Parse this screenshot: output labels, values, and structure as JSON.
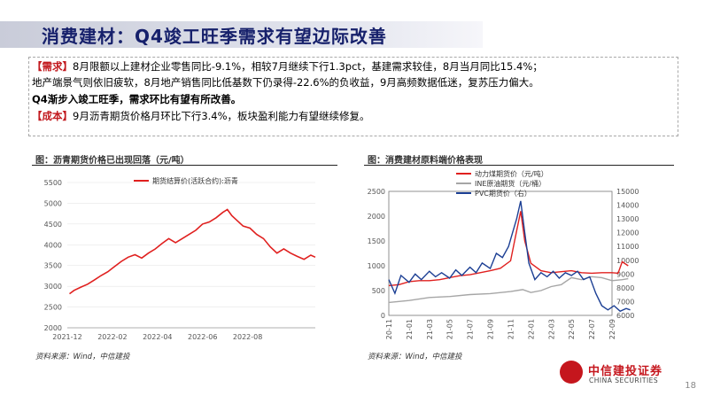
{
  "header": {
    "title": "消费建材：Q4竣工旺季需求有望边际改善"
  },
  "paragraphs": {
    "demand_tag": "【需求】",
    "demand_line1": "8月限额以上建材企业零售同比-9.1%，相较7月继续下行1.3pct，基建需求较佳，8月当月同比15.4%；",
    "demand_line2": "地产端景气则依旧疲软，8月地产销售同比低基数下仍录得-22.6%的负收益，9月高频数据低迷，复苏压力偏大。",
    "demand_line3": "Q4渐步入竣工旺季，需求环比有望有所改善。",
    "cost_tag": "【成本】",
    "cost_line": "9月沥青期货价格月环比下行3.4%，板块盈利能力有望继续修复。"
  },
  "charts": {
    "left_title": "图：沥青期货价格已出现回落（元/吨）",
    "right_title": "图：消费建材原料端价格表现",
    "source": "资料来源：Wind，中信建投",
    "page_number": "18"
  },
  "logo": {
    "cn": "中信建投证券",
    "en": "CHINA SECURITIES"
  },
  "chart_data": [
    {
      "type": "line",
      "title": "图：沥青期货价格已出现回落（元/吨）",
      "ylim": [
        2000,
        5500
      ],
      "yticks": [
        2000,
        2500,
        3000,
        3500,
        4000,
        4500,
        5000,
        5500
      ],
      "xticks": [
        "2021-12",
        "2022-02",
        "2022-04",
        "2022-06",
        "2022-08"
      ],
      "x_range": [
        0,
        11
      ],
      "series": [
        {
          "name": "期货结算价(活跃合约):沥青",
          "color": "#e0201f",
          "points": [
            [
              0.1,
              2820
            ],
            [
              0.3,
              2900
            ],
            [
              0.6,
              2980
            ],
            [
              0.9,
              3050
            ],
            [
              1.2,
              3150
            ],
            [
              1.5,
              3260
            ],
            [
              1.8,
              3350
            ],
            [
              2.1,
              3480
            ],
            [
              2.4,
              3600
            ],
            [
              2.7,
              3700
            ],
            [
              3.0,
              3760
            ],
            [
              3.3,
              3680
            ],
            [
              3.6,
              3800
            ],
            [
              3.9,
              3900
            ],
            [
              4.2,
              4030
            ],
            [
              4.5,
              4150
            ],
            [
              4.8,
              4050
            ],
            [
              5.1,
              4150
            ],
            [
              5.4,
              4250
            ],
            [
              5.7,
              4350
            ],
            [
              6.0,
              4500
            ],
            [
              6.3,
              4550
            ],
            [
              6.6,
              4650
            ],
            [
              6.9,
              4780
            ],
            [
              7.1,
              4850
            ],
            [
              7.3,
              4700
            ],
            [
              7.5,
              4600
            ],
            [
              7.8,
              4450
            ],
            [
              8.1,
              4400
            ],
            [
              8.4,
              4250
            ],
            [
              8.7,
              4150
            ],
            [
              9.0,
              3950
            ],
            [
              9.3,
              3800
            ],
            [
              9.6,
              3900
            ],
            [
              9.9,
              3800
            ],
            [
              10.2,
              3720
            ],
            [
              10.5,
              3650
            ],
            [
              10.8,
              3750
            ],
            [
              11.0,
              3700
            ]
          ]
        }
      ]
    },
    {
      "type": "line",
      "title": "图：消费建材原料端价格表现",
      "ylim_left": [
        0,
        2500
      ],
      "yticks_left": [
        0,
        500,
        1000,
        1500,
        2000,
        2500
      ],
      "ylim_right": [
        6000,
        15000
      ],
      "yticks_right": [
        6000,
        7000,
        8000,
        9000,
        10000,
        11000,
        12000,
        13000,
        14000,
        15000
      ],
      "xticks": [
        "20-11",
        "21-01",
        "21-03",
        "21-05",
        "21-07",
        "21-09",
        "21-11",
        "22-01",
        "22-03",
        "22-05",
        "22-07",
        "22-09"
      ],
      "series": [
        {
          "name": "动力煤期货价（元/吨）",
          "axis": "left",
          "color": "#e0201f",
          "points": [
            [
              0,
              600
            ],
            [
              0.5,
              620
            ],
            [
              1,
              680
            ],
            [
              1.5,
              700
            ],
            [
              2,
              700
            ],
            [
              2.5,
              720
            ],
            [
              3,
              760
            ],
            [
              3.5,
              800
            ],
            [
              4,
              820
            ],
            [
              4.5,
              860
            ],
            [
              5,
              900
            ],
            [
              5.5,
              950
            ],
            [
              6,
              1100
            ],
            [
              6.2,
              1500
            ],
            [
              6.5,
              2100
            ],
            [
              6.7,
              1500
            ],
            [
              7,
              1050
            ],
            [
              7.5,
              900
            ],
            [
              8,
              860
            ],
            [
              8.5,
              880
            ],
            [
              9,
              900
            ],
            [
              9.5,
              860
            ],
            [
              10,
              850
            ],
            [
              10.5,
              860
            ],
            [
              11,
              860
            ],
            [
              11.3,
              850
            ],
            [
              11.5,
              1080
            ],
            [
              11.8,
              1000
            ]
          ]
        },
        {
          "name": "INE原油期货（元/桶）",
          "axis": "left",
          "color": "#a6a6a6",
          "points": [
            [
              0,
              260
            ],
            [
              1,
              300
            ],
            [
              2,
              360
            ],
            [
              3,
              380
            ],
            [
              4,
              420
            ],
            [
              5,
              440
            ],
            [
              6,
              480
            ],
            [
              6.6,
              520
            ],
            [
              7,
              460
            ],
            [
              7.5,
              500
            ],
            [
              8,
              580
            ],
            [
              8.5,
              620
            ],
            [
              9,
              760
            ],
            [
              9.5,
              720
            ],
            [
              10,
              780
            ],
            [
              10.5,
              760
            ],
            [
              11,
              700
            ],
            [
              11.5,
              720
            ],
            [
              11.8,
              740
            ]
          ]
        },
        {
          "name": "PVC期货价（右）",
          "axis": "right",
          "color": "#1c3f94",
          "points": [
            [
              0,
              8600
            ],
            [
              0.3,
              7600
            ],
            [
              0.6,
              8900
            ],
            [
              1,
              8400
            ],
            [
              1.3,
              9000
            ],
            [
              1.6,
              8600
            ],
            [
              2,
              9200
            ],
            [
              2.3,
              8800
            ],
            [
              2.6,
              9100
            ],
            [
              3,
              8700
            ],
            [
              3.3,
              9300
            ],
            [
              3.6,
              8900
            ],
            [
              4,
              9500
            ],
            [
              4.3,
              9100
            ],
            [
              4.6,
              9800
            ],
            [
              5,
              9400
            ],
            [
              5.3,
              10500
            ],
            [
              5.6,
              10200
            ],
            [
              5.9,
              11000
            ],
            [
              6.1,
              12000
            ],
            [
              6.3,
              13000
            ],
            [
              6.5,
              14300
            ],
            [
              6.7,
              12000
            ],
            [
              6.9,
              9800
            ],
            [
              7.2,
              8600
            ],
            [
              7.5,
              9100
            ],
            [
              7.8,
              8800
            ],
            [
              8.1,
              9200
            ],
            [
              8.4,
              8700
            ],
            [
              8.7,
              9100
            ],
            [
              9,
              8900
            ],
            [
              9.3,
              9200
            ],
            [
              9.6,
              8600
            ],
            [
              9.9,
              8800
            ],
            [
              10.2,
              7600
            ],
            [
              10.5,
              6700
            ],
            [
              10.8,
              6400
            ],
            [
              11.1,
              6700
            ],
            [
              11.4,
              6300
            ],
            [
              11.7,
              6500
            ],
            [
              11.9,
              6400
            ]
          ]
        }
      ]
    }
  ]
}
